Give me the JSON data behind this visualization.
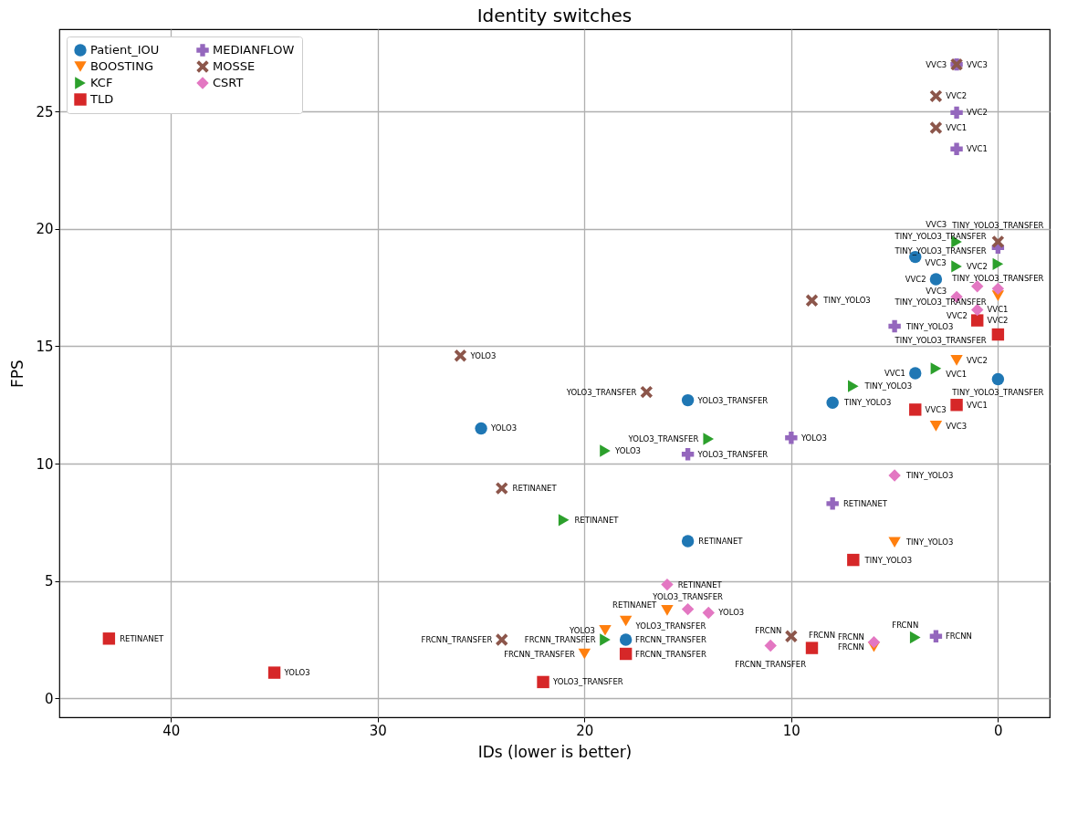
{
  "chart_data": {
    "type": "scatter",
    "title": "Identity switches",
    "xlabel": "IDs  (lower is better)",
    "ylabel": "FPS",
    "xlim": [
      45.4,
      -2.5
    ],
    "xticks": [
      40,
      30,
      20,
      10,
      0
    ],
    "ylim": [
      -0.8,
      28.5
    ],
    "yticks": [
      0,
      5,
      10,
      15,
      20,
      25
    ],
    "grid": true,
    "legend": "top left",
    "series": [
      {
        "name": "Patient_IOU",
        "color": "#1f77b4",
        "marker": "circle",
        "x": [
          25,
          15,
          15,
          8,
          4,
          4,
          3,
          0,
          18
        ],
        "values": [
          11.5,
          12.7,
          6.7,
          12.6,
          13.85,
          18.8,
          17.85,
          13.6,
          2.5
        ],
        "value_labels": [
          "YOLO3",
          "YOLO3_TRANSFER",
          "RETINANET",
          "TINY_YOLO3",
          "VVC1",
          "VVC3",
          "VVC2",
          "TINY_YOLO3_TRANSFER",
          "FRCNN_TRANSFER"
        ]
      },
      {
        "name": "BOOSTING",
        "color": "#ff7f0e",
        "marker": "triangle-down",
        "x": [
          2,
          3,
          5,
          0,
          16,
          18,
          19,
          20,
          6
        ],
        "values": [
          14.4,
          11.6,
          6.65,
          17.15,
          3.75,
          3.3,
          2.9,
          1.9,
          2.2
        ],
        "value_labels": [
          "VVC2",
          "VVC3",
          "TINY_YOLO3",
          "TINY_YOLO3_TRANSFER",
          "RETINANET",
          "YOLO3_TRANSFER",
          "YOLO3",
          "FRCNN_TRANSFER",
          "FRCNN"
        ]
      },
      {
        "name": "KCF",
        "color": "#2ca02c",
        "marker": "triangle-right",
        "x": [
          19,
          21,
          14,
          7,
          3,
          2,
          2,
          0,
          19,
          4
        ],
        "values": [
          10.55,
          7.6,
          11.05,
          13.3,
          14.05,
          19.45,
          18.4,
          18.5,
          2.5,
          2.6
        ],
        "value_labels": [
          "YOLO3",
          "RETINANET",
          "YOLO3_TRANSFER",
          "TINY_YOLO3",
          "VVC1",
          "VVC3",
          "VVC2",
          "TINY_YOLO3_TRANSFER",
          "FRCNN_TRANSFER",
          "FRCNN"
        ]
      },
      {
        "name": "TLD",
        "color": "#d62728",
        "marker": "square",
        "x": [
          43,
          35,
          22,
          18,
          9,
          7,
          4,
          2,
          1,
          0
        ],
        "values": [
          2.55,
          1.1,
          0.7,
          1.9,
          2.15,
          5.9,
          12.3,
          12.5,
          16.1,
          15.5
        ],
        "value_labels": [
          "RETINANET",
          "YOLO3",
          "YOLO3_TRANSFER",
          "FRCNN_TRANSFER",
          "FRCNN",
          "TINY_YOLO3",
          "VVC3",
          "VVC1",
          "VVC2",
          "TINY_YOLO3_TRANSFER"
        ]
      },
      {
        "name": "MEDIANFLOW",
        "color": "#9467bd",
        "marker": "cross",
        "x": [
          15,
          10,
          8,
          5,
          2,
          2,
          2,
          0,
          3
        ],
        "values": [
          10.4,
          11.1,
          8.3,
          15.85,
          23.4,
          24.95,
          27,
          19.2,
          2.65
        ],
        "value_labels": [
          "YOLO3_TRANSFER",
          "YOLO3",
          "RETINANET",
          "TINY_YOLO3",
          "VVC1",
          "VVC2",
          "VVC3",
          "TINY_YOLO3_TRANSFER",
          "FRCNN"
        ]
      },
      {
        "name": "MOSSE",
        "color": "#8c564b",
        "marker": "x",
        "x": [
          26,
          24,
          17,
          9,
          24,
          10,
          2,
          3,
          3,
          0
        ],
        "values": [
          14.6,
          8.95,
          13.05,
          16.95,
          2.5,
          2.65,
          27,
          25.65,
          24.3,
          19.45
        ],
        "value_labels": [
          "YOLO3",
          "RETINANET",
          "YOLO3_TRANSFER",
          "TINY_YOLO3",
          "FRCNN_TRANSFER",
          "FRCNN",
          "VVC3",
          "VVC2",
          "VVC1",
          "TINY_YOLO3_TRANSFER"
        ]
      },
      {
        "name": "CSRT",
        "color": "#e377c2",
        "marker": "diamond",
        "x": [
          16,
          15,
          14,
          5,
          11,
          6,
          2,
          1,
          1,
          0
        ],
        "values": [
          4.85,
          3.8,
          3.65,
          9.5,
          2.25,
          2.4,
          17.1,
          17.55,
          16.55,
          17.45
        ],
        "value_labels": [
          "RETINANET",
          "YOLO3_TRANSFER",
          "YOLO3",
          "TINY_YOLO3",
          "FRCNN_TRANSFER",
          "FRCNN",
          "VVC3",
          "VVC1",
          "VVC2",
          "TINY_YOLO3_TRANSFER"
        ]
      }
    ]
  }
}
